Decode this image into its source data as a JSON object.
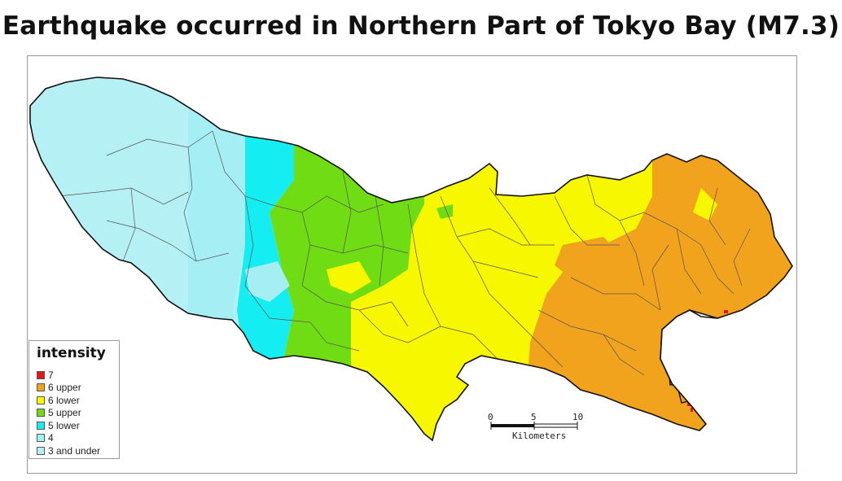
{
  "title": "Earthquake occurred in Northern Part of Tokyo Bay (M7.3)",
  "legend": {
    "title": "intensity",
    "items": [
      {
        "label": "7",
        "color": "#e8161c"
      },
      {
        "label": "6 upper",
        "color": "#f2a31e"
      },
      {
        "label": "6 lower",
        "color": "#f7f700"
      },
      {
        "label": "5 upper",
        "color": "#6fdc14"
      },
      {
        "label": "5 lower",
        "color": "#14eef2"
      },
      {
        "label": "4",
        "color": "#9ef2f2"
      },
      {
        "label": "3 and under",
        "color": "#b5f0f5"
      }
    ]
  },
  "scale": {
    "ticks": [
      "0",
      "5",
      "10"
    ],
    "unit": "Kilometers"
  }
}
